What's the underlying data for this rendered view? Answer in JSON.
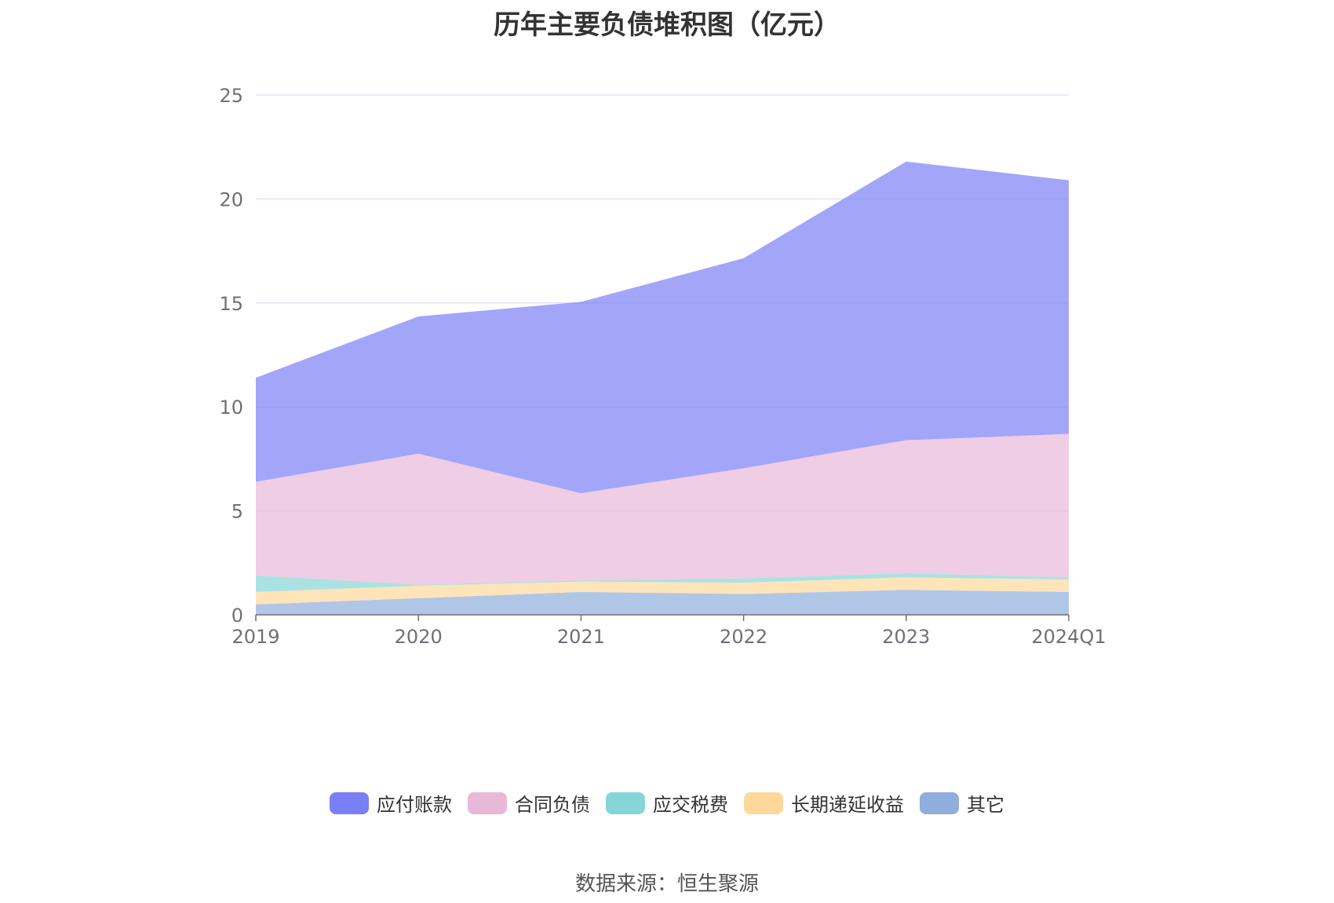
{
  "chart_data": {
    "type": "area",
    "stacked": true,
    "title": "历年主要负债堆积图（亿元）",
    "categories": [
      "2019",
      "2020",
      "2021",
      "2022",
      "2023",
      "2024Q1"
    ],
    "ylim": [
      0,
      25
    ],
    "yticks": [
      0,
      5,
      10,
      15,
      20,
      25
    ],
    "grid": true,
    "legend_position": "bottom",
    "series": [
      {
        "name": "其它",
        "color": "#8faedd",
        "values": [
          0.5,
          0.8,
          1.1,
          1.0,
          1.2,
          1.1
        ]
      },
      {
        "name": "长期递延收益",
        "color": "#fed89b",
        "values": [
          0.6,
          0.6,
          0.5,
          0.55,
          0.6,
          0.6
        ]
      },
      {
        "name": "应交税费",
        "color": "#86d6d8",
        "values": [
          0.8,
          0.05,
          0.05,
          0.2,
          0.2,
          0.1
        ]
      },
      {
        "name": "合同负债",
        "color": "#e8b8d8",
        "values": [
          4.5,
          6.3,
          4.2,
          5.3,
          6.4,
          6.9
        ]
      },
      {
        "name": "应付账款",
        "color": "#7b7ff5",
        "values": [
          5.0,
          6.6,
          9.2,
          10.1,
          13.4,
          12.2
        ]
      }
    ]
  },
  "legend_order": [
    {
      "name": "应付账款",
      "color": "#7b7ff5"
    },
    {
      "name": "合同负债",
      "color": "#e8b8d8"
    },
    {
      "name": "应交税费",
      "color": "#86d6d8"
    },
    {
      "name": "长期递延收益",
      "color": "#fed89b"
    },
    {
      "name": "其它",
      "color": "#8faedd"
    }
  ],
  "source": "数据来源：恒生聚源"
}
